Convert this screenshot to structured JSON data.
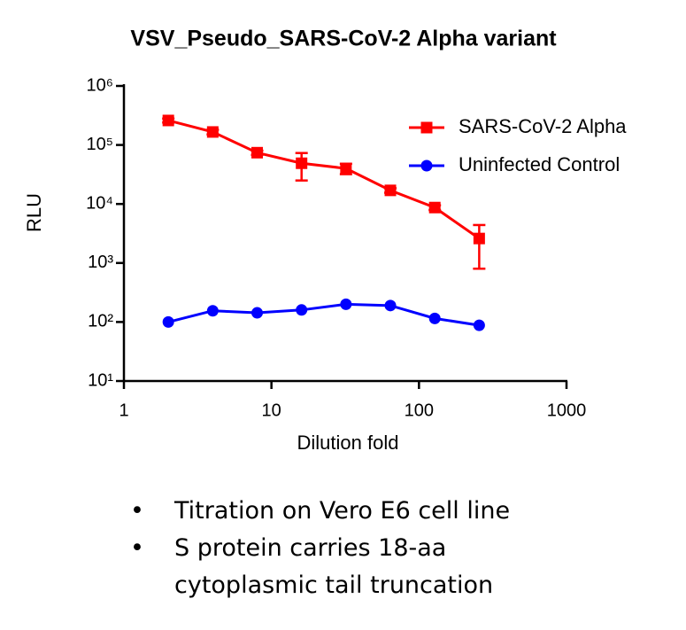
{
  "chart_data": {
    "type": "line",
    "title": "VSV_Pseudo_SARS-CoV-2 Alpha variant",
    "x_label": "Dilution fold",
    "y_label": "RLU",
    "x": [
      2,
      4,
      8,
      16,
      32,
      64,
      128,
      256
    ],
    "series": [
      {
        "name": "SARS-CoV-2 Alpha",
        "color": "#ff0000",
        "marker": "square",
        "values": [
          260000,
          166000,
          74000,
          49000,
          40000,
          17000,
          8700,
          2600
        ],
        "errors": [
          20000,
          15000,
          6000,
          24000,
          8000,
          1500,
          800,
          1800
        ]
      },
      {
        "name": "Uninfected Control",
        "color": "#0000ff",
        "marker": "circle",
        "values": [
          100,
          155,
          143,
          160,
          200,
          190,
          115,
          88
        ]
      }
    ],
    "xscale": "log",
    "yscale": "log",
    "xlim": [
      1,
      1000
    ],
    "ylim": [
      10,
      1000000
    ],
    "xticks": [
      1,
      10,
      100,
      1000
    ],
    "yticks": [
      {
        "value": 10,
        "label": "10¹"
      },
      {
        "value": 100,
        "label": "10²"
      },
      {
        "value": 1000,
        "label": "10³"
      },
      {
        "value": 10000,
        "label": "10⁴"
      },
      {
        "value": 100000,
        "label": "10⁵"
      },
      {
        "value": 1000000,
        "label": "10⁶"
      }
    ],
    "grid": false,
    "legend": "upper right"
  },
  "notes": [
    "Titration on Vero E6 cell line",
    "S protein carries 18-aa cytoplasmic tail truncation"
  ]
}
